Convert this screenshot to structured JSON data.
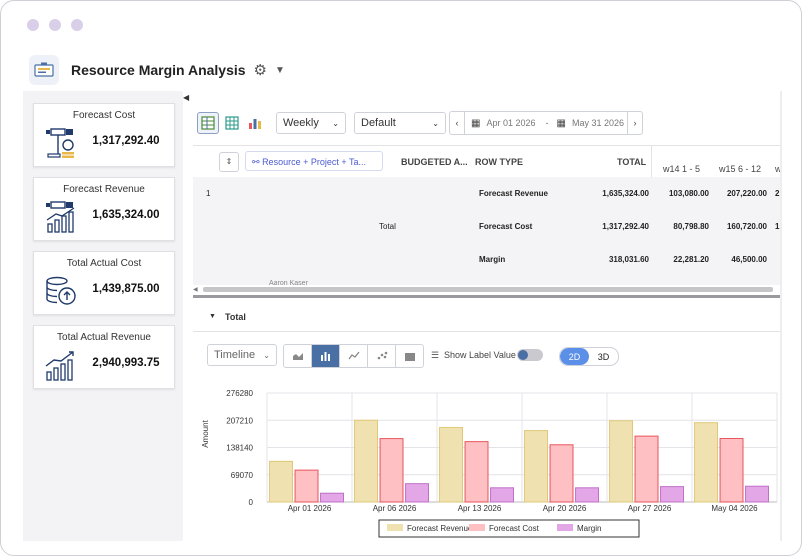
{
  "app": {
    "title": "Resource Margin Analysis"
  },
  "kpis": [
    {
      "label": "Forecast Cost",
      "value": "1,317,292.40",
      "icon": "forecast-cost-icon"
    },
    {
      "label": "Forecast Revenue",
      "value": "1,635,324.00",
      "icon": "forecast-revenue-icon"
    },
    {
      "label": "Total Actual Cost",
      "value": "1,439,875.00",
      "icon": "actual-cost-icon"
    },
    {
      "label": "Total Actual Revenue",
      "value": "2,940,993.75",
      "icon": "actual-revenue-icon"
    }
  ],
  "toolbar": {
    "period": "Weekly",
    "view": "Default",
    "date_from": "Apr 01 2026",
    "date_sep": "-",
    "date_to": "May 31 2026"
  },
  "grid": {
    "group_label": "Resource + Project + Ta...",
    "columns": [
      "BUDGETED A...",
      "ROW TYPE",
      "TOTAL",
      "w14 1 - 5",
      "w15 6 - 12",
      "w"
    ],
    "row_id": "1",
    "total_label": "Total",
    "rows": [
      {
        "type": "Forecast Revenue",
        "total": "1,635,324.00",
        "w14": "103,080.00",
        "w15": "207,220.00",
        "w16": "2"
      },
      {
        "type": "Forecast Cost",
        "total": "1,317,292.40",
        "w14": "80,798.80",
        "w15": "160,720.00",
        "w16": "1"
      },
      {
        "type": "Margin",
        "total": "318,031.60",
        "w14": "22,281.20",
        "w15": "46,500.00",
        "w16": ""
      }
    ],
    "peek_row": "Aaron Kaser"
  },
  "section": {
    "title": "Total"
  },
  "chart_controls": {
    "mode": "Timeline",
    "label_toggle": "Show Label Value",
    "dim_2d": "2D",
    "dim_3d": "3D"
  },
  "chart_data": {
    "type": "bar",
    "categories": [
      "Apr 01 2026",
      "Apr 06 2026",
      "Apr 13 2026",
      "Apr 20 2026",
      "Apr 27 2026",
      "May 04 2026"
    ],
    "series": [
      {
        "name": "Forecast Revenue",
        "values": [
          103080,
          207220,
          189000,
          181000,
          206000,
          201000
        ],
        "color": "#f0e2b0",
        "stroke": "#e0c878"
      },
      {
        "name": "Forecast Cost",
        "values": [
          80799,
          160720,
          153000,
          145000,
          167000,
          161000
        ],
        "color": "#ffc0c4",
        "stroke": "#e8555a"
      },
      {
        "name": "Margin",
        "values": [
          22281,
          46500,
          36000,
          36000,
          39000,
          40000
        ],
        "color": "#e3a6e6",
        "stroke": "#c070c8"
      }
    ],
    "yticks": [
      "276280",
      "207210",
      "138140",
      "69070",
      "0"
    ],
    "ylim": [
      0,
      276280
    ],
    "ylabel": "Amount",
    "grid": true,
    "legend": "bottom"
  }
}
